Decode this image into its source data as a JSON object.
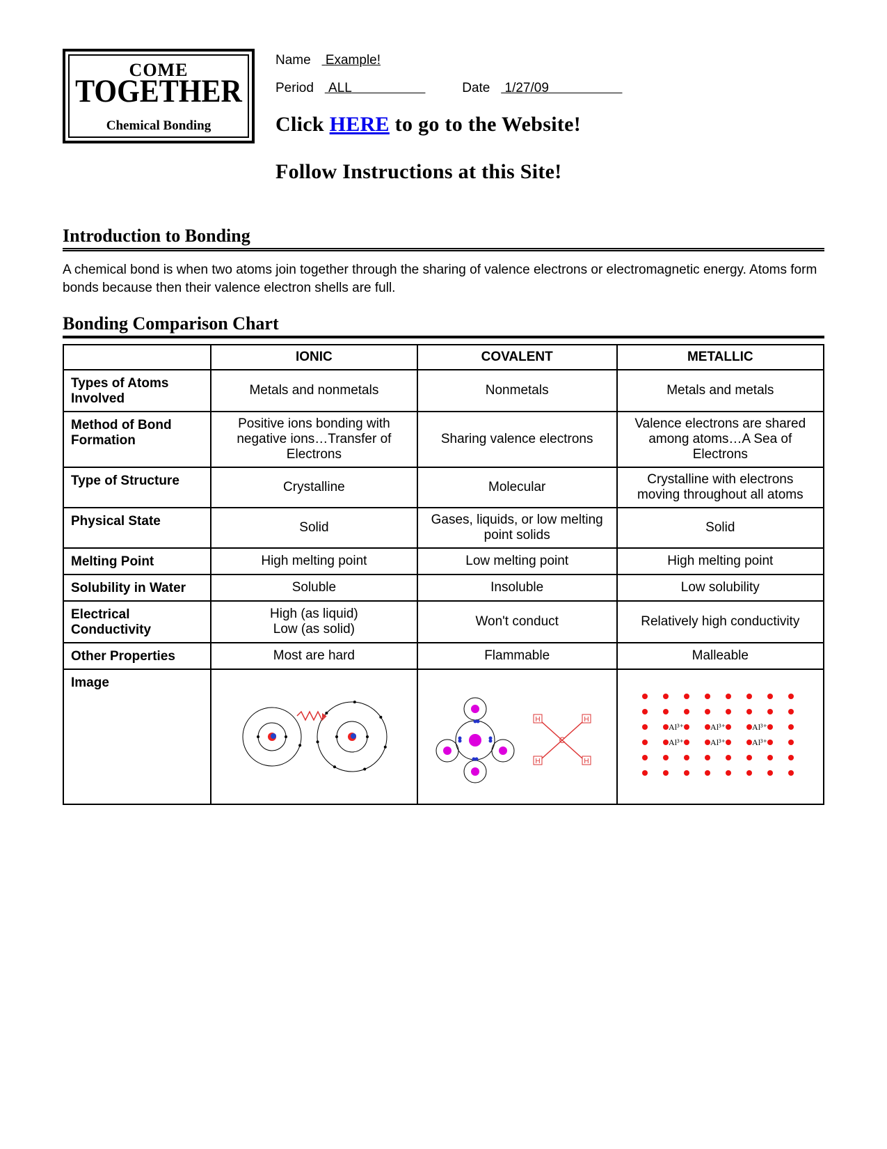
{
  "logo": {
    "line1": "COME",
    "line2": "TOGETHER",
    "subtitle": "Chemical Bonding"
  },
  "fillins": {
    "name_label": "Name",
    "name_value": "Example!",
    "period_label": "Period",
    "period_value": "ALL",
    "date_label": "Date",
    "date_value": "1/27/09"
  },
  "headlines": {
    "click_pre": "Click ",
    "click_link": "HERE",
    "click_post": " to go to the Website!",
    "follow": "Follow Instructions at this Site!"
  },
  "intro": {
    "title": "Introduction to Bonding",
    "body": "A chemical bond is when two atoms join together through the sharing of valence electrons or electromagnetic energy. Atoms form bonds because then their valence electron shells are full."
  },
  "chart": {
    "title": "Bonding Comparison Chart",
    "columns": [
      "IONIC",
      "COVALENT",
      "METALLIC"
    ],
    "rows": [
      {
        "label": "Types of Atoms Involved",
        "ionic": "Metals and nonmetals",
        "covalent": "Nonmetals",
        "metallic": "Metals and metals"
      },
      {
        "label": "Method of Bond Formation",
        "ionic": "Positive ions bonding with negative ions…Transfer of Electrons",
        "covalent": "Sharing valence electrons",
        "metallic": "Valence electrons are shared among atoms…A Sea of Electrons"
      },
      {
        "label": "Type of Structure",
        "ionic": "Crystalline",
        "covalent": "Molecular",
        "metallic": "Crystalline with electrons moving throughout all atoms"
      },
      {
        "label": "Physical State",
        "ionic": "Solid",
        "covalent": "Gases, liquids, or low melting point solids",
        "metallic": "Solid"
      },
      {
        "label": "Melting Point",
        "ionic": "High melting point",
        "covalent": "Low melting point",
        "metallic": "High melting point"
      },
      {
        "label": "Solubility in Water",
        "ionic": "Soluble",
        "covalent": "Insoluble",
        "metallic": "Low solubility"
      },
      {
        "label": "Electrical Conductivity",
        "ionic": "High (as liquid)\nLow (as solid)",
        "covalent": "Won't conduct",
        "metallic": "Relatively high conductivity"
      },
      {
        "label": "Other Properties",
        "ionic": "Most are hard",
        "covalent": "Flammable",
        "metallic": "Malleable"
      },
      {
        "label": "Image",
        "ionic": "",
        "covalent": "",
        "metallic": ""
      }
    ],
    "colors": {
      "electron_red": "#ee2222",
      "nucleus_blue": "#2244cc",
      "magenta": "#dd00dd",
      "blue_dot": "#2233cc",
      "metal_red": "#ee1111",
      "text_black": "#000000",
      "outline": "#000000",
      "bond_red": "#dd3333"
    },
    "metallic_ion_label": "Al³⁺"
  }
}
